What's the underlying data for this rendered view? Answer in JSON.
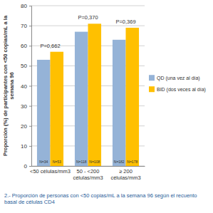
{
  "chart_data": {
    "type": "bar",
    "ylabel": "Proporción (%) de participantes con <50 copias/mL a la semana 96",
    "caption": "2.- Proporción de personas con <50 copias/mL a la semana 96 según el recuento basal de células CD4",
    "categories": [
      "<50 células/mm3",
      "50 - <200 células/mm3",
      "≥ 200 células/mm3"
    ],
    "series": [
      {
        "name": "QD (una vez al día)",
        "color": "#95b3d7",
        "values": [
          53,
          67,
          63
        ],
        "sample_labels": [
          "N=34",
          "N=118",
          "N=182"
        ]
      },
      {
        "name": "BID (dos veces al día)",
        "color": "#ffc000",
        "values": [
          57,
          71,
          69
        ],
        "sample_labels": [
          "N=53",
          "N=108",
          "N=178"
        ]
      }
    ],
    "p_values": [
      "P=0,662",
      "P=0,370",
      "P=0,369"
    ],
    "ylim": [
      0,
      80
    ],
    "yticks": [
      0,
      10,
      20,
      30,
      40,
      50,
      60,
      70,
      80
    ],
    "grid": true,
    "legend": "right"
  }
}
